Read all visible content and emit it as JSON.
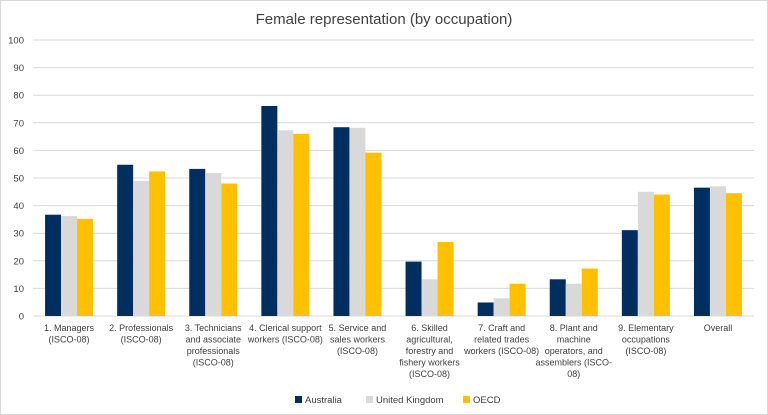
{
  "chart_data": {
    "type": "bar",
    "title": "Female representation (by occupation)",
    "xlabel": "",
    "ylabel": "",
    "ylim": [
      0,
      100
    ],
    "yticks": [
      0,
      10,
      20,
      30,
      40,
      50,
      60,
      70,
      80,
      90,
      100
    ],
    "grid": true,
    "legend_position": "bottom",
    "categories": [
      [
        "1. Managers",
        "(ISCO-08)"
      ],
      [
        "2. Professionals",
        "(ISCO-08)"
      ],
      [
        "3. Technicians",
        "and associate",
        "professionals",
        "(ISCO-08)"
      ],
      [
        "4. Clerical support",
        "workers (ISCO-08)"
      ],
      [
        "5. Service and",
        "sales workers",
        "(ISCO-08)"
      ],
      [
        "6. Skilled",
        "agricultural,",
        "forestry and",
        "fishery workers",
        "(ISCO-08)"
      ],
      [
        "7. Craft and",
        "related trades",
        "workers (ISCO-08)"
      ],
      [
        "8. Plant and",
        "machine",
        "operators, and",
        "assemblers (ISCO-",
        "08)"
      ],
      [
        "9. Elementary",
        "occupations",
        "(ISCO-08)"
      ],
      [
        "Overall"
      ]
    ],
    "series": [
      {
        "name": "Australia",
        "color": "#002f5f",
        "values": [
          36.7,
          54.8,
          53.3,
          76.1,
          68.4,
          19.7,
          4.9,
          13.3,
          31.1,
          46.5
        ]
      },
      {
        "name": "United Kingdom",
        "color": "#d9d9d9",
        "values": [
          36.2,
          48.9,
          51.8,
          67.3,
          68.2,
          13.3,
          6.4,
          11.7,
          45.0,
          47.0
        ]
      },
      {
        "name": "OECD",
        "color": "#ffc000",
        "values": [
          35.2,
          52.4,
          48.0,
          66.0,
          59.2,
          26.8,
          11.7,
          17.2,
          44.0,
          44.5
        ]
      }
    ]
  }
}
